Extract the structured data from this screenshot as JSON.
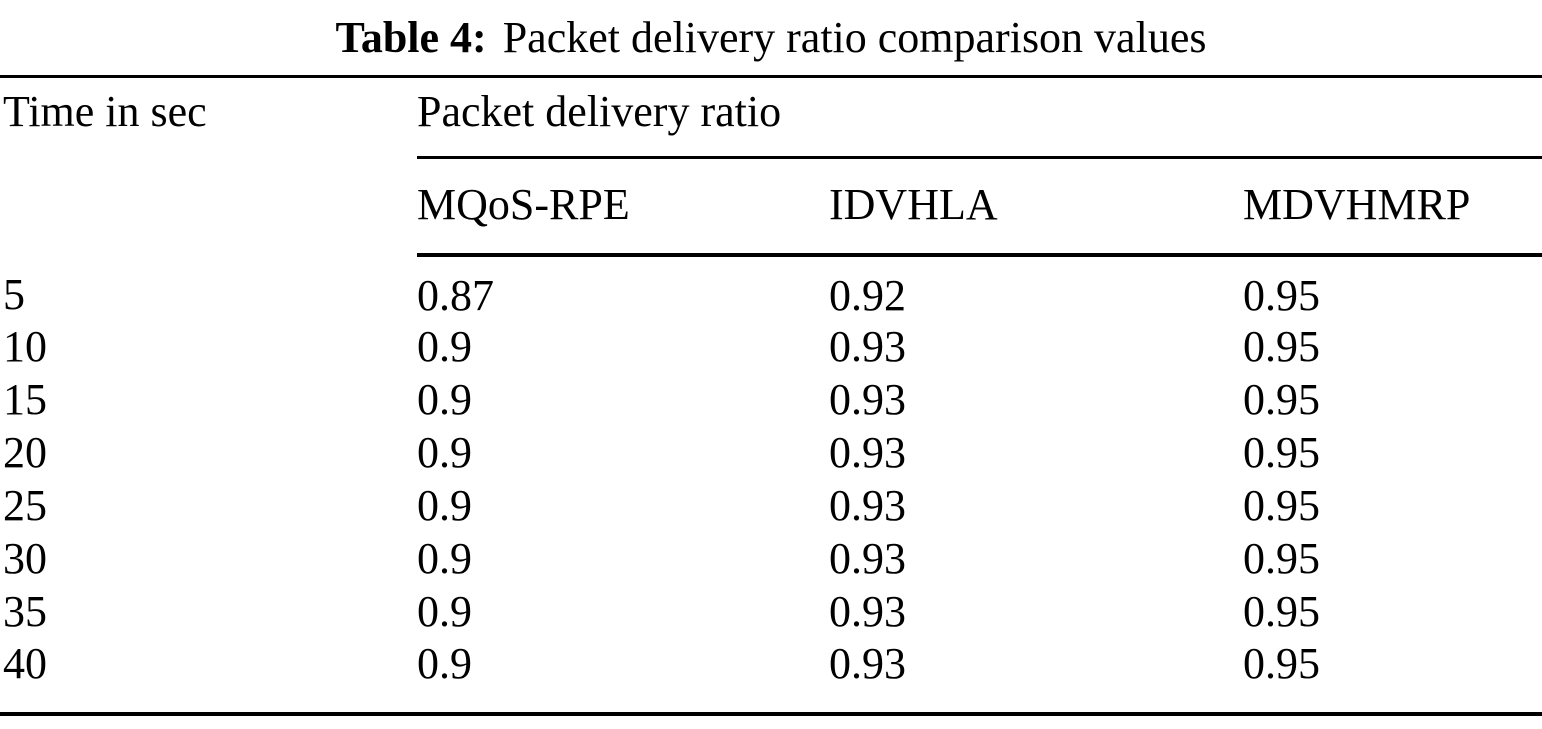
{
  "title": {
    "label": "Table 4:",
    "text": "Packet delivery ratio comparison values"
  },
  "table": {
    "time_header": "Time in sec",
    "group_header": "Packet delivery ratio",
    "method_headers": [
      "MQoS-RPE",
      "IDVHLA",
      "MDVHMRP"
    ],
    "rows": [
      {
        "time": "5",
        "values": [
          "0.87",
          "0.92",
          "0.95"
        ]
      },
      {
        "time": "10",
        "values": [
          "0.9",
          "0.93",
          "0.95"
        ]
      },
      {
        "time": "15",
        "values": [
          "0.9",
          "0.93",
          "0.95"
        ]
      },
      {
        "time": "20",
        "values": [
          "0.9",
          "0.93",
          "0.95"
        ]
      },
      {
        "time": "25",
        "values": [
          "0.9",
          "0.93",
          "0.95"
        ]
      },
      {
        "time": "30",
        "values": [
          "0.9",
          "0.93",
          "0.95"
        ]
      },
      {
        "time": "35",
        "values": [
          "0.9",
          "0.93",
          "0.95"
        ]
      },
      {
        "time": "40",
        "values": [
          "0.9",
          "0.93",
          "0.95"
        ]
      }
    ]
  },
  "chart_data": {
    "type": "table",
    "title": "Table 4: Packet delivery ratio comparison values",
    "columns": [
      "Time in sec",
      "MQoS-RPE",
      "IDVHLA",
      "MDVHMRP"
    ],
    "column_group": {
      "label": "Packet delivery ratio",
      "columns": [
        "MQoS-RPE",
        "IDVHLA",
        "MDVHMRP"
      ]
    },
    "x_label": "Time in sec",
    "x": [
      5,
      10,
      15,
      20,
      25,
      30,
      35,
      40
    ],
    "series": [
      {
        "name": "MQoS-RPE",
        "values": [
          0.87,
          0.9,
          0.9,
          0.9,
          0.9,
          0.9,
          0.9,
          0.9
        ]
      },
      {
        "name": "IDVHLA",
        "values": [
          0.92,
          0.93,
          0.93,
          0.93,
          0.93,
          0.93,
          0.93,
          0.93
        ]
      },
      {
        "name": "MDVHMRP",
        "values": [
          0.95,
          0.95,
          0.95,
          0.95,
          0.95,
          0.95,
          0.95,
          0.95
        ]
      }
    ]
  },
  "colors": {
    "text": "#000000",
    "background": "#ffffff",
    "rule": "#000000"
  }
}
